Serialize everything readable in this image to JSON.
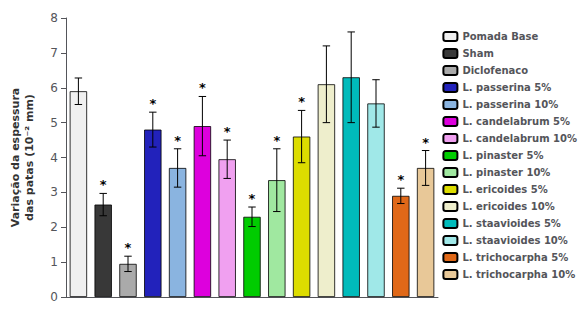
{
  "chart_data": {
    "type": "bar",
    "ylabel": "Variação da espessura\ndas patas (10⁻² mm)",
    "categories": [
      "Pomada Base",
      "Sham",
      "Diclofenaco",
      "L. passerina 5%",
      "L. passerina 10%",
      "L. candelabrum 5%",
      "L. candelabrum 10%",
      "L. pinaster 5%",
      "L. pinaster 10%",
      "L. ericoides 5%",
      "L. ericoides 10%",
      "L. staavioides 5%",
      "L. staavioides 10%",
      "L. trichocarpha 5%",
      "L. trichocarpha 10%"
    ],
    "values": [
      5.9,
      2.65,
      0.95,
      4.8,
      3.7,
      4.9,
      3.95,
      2.3,
      3.35,
      4.6,
      6.1,
      6.3,
      5.55,
      2.9,
      3.7
    ],
    "errors": [
      0.38,
      0.32,
      0.22,
      0.5,
      0.55,
      0.85,
      0.55,
      0.28,
      0.9,
      0.75,
      1.1,
      1.3,
      0.68,
      0.22,
      0.5
    ],
    "colors": [
      "#f0f0f0",
      "#383838",
      "#aaaaaa",
      "#2222bb",
      "#8ab4e0",
      "#dd00dd",
      "#f0a0f0",
      "#00cc00",
      "#a0e8a0",
      "#dddd00",
      "#eeeecc",
      "#00bbbb",
      "#a0e8e8",
      "#e06818",
      "#e8c898"
    ],
    "annotations": [
      {
        "category": "Sham",
        "text": "*"
      },
      {
        "category": "Diclofenaco",
        "text": "*"
      },
      {
        "category": "L. passerina 5%",
        "text": "*"
      },
      {
        "category": "L. passerina 10%",
        "text": "*"
      },
      {
        "category": "L. candelabrum 5%",
        "text": "*"
      },
      {
        "category": "L. candelabrum 10%",
        "text": "*"
      },
      {
        "category": "L. pinaster 5%",
        "text": "*"
      },
      {
        "category": "L. pinaster 10%",
        "text": "*"
      },
      {
        "category": "L. ericoides 5%",
        "text": "*"
      },
      {
        "category": "L. trichocarpha 5%",
        "text": "*"
      },
      {
        "category": "L. trichocarpha 10%",
        "text": "*"
      }
    ],
    "ylim": [
      0,
      8
    ],
    "yticks": [
      0,
      1,
      2,
      3,
      4,
      5,
      6,
      7,
      8
    ],
    "grid": false,
    "legend": "right",
    "tick_labels": "y"
  }
}
